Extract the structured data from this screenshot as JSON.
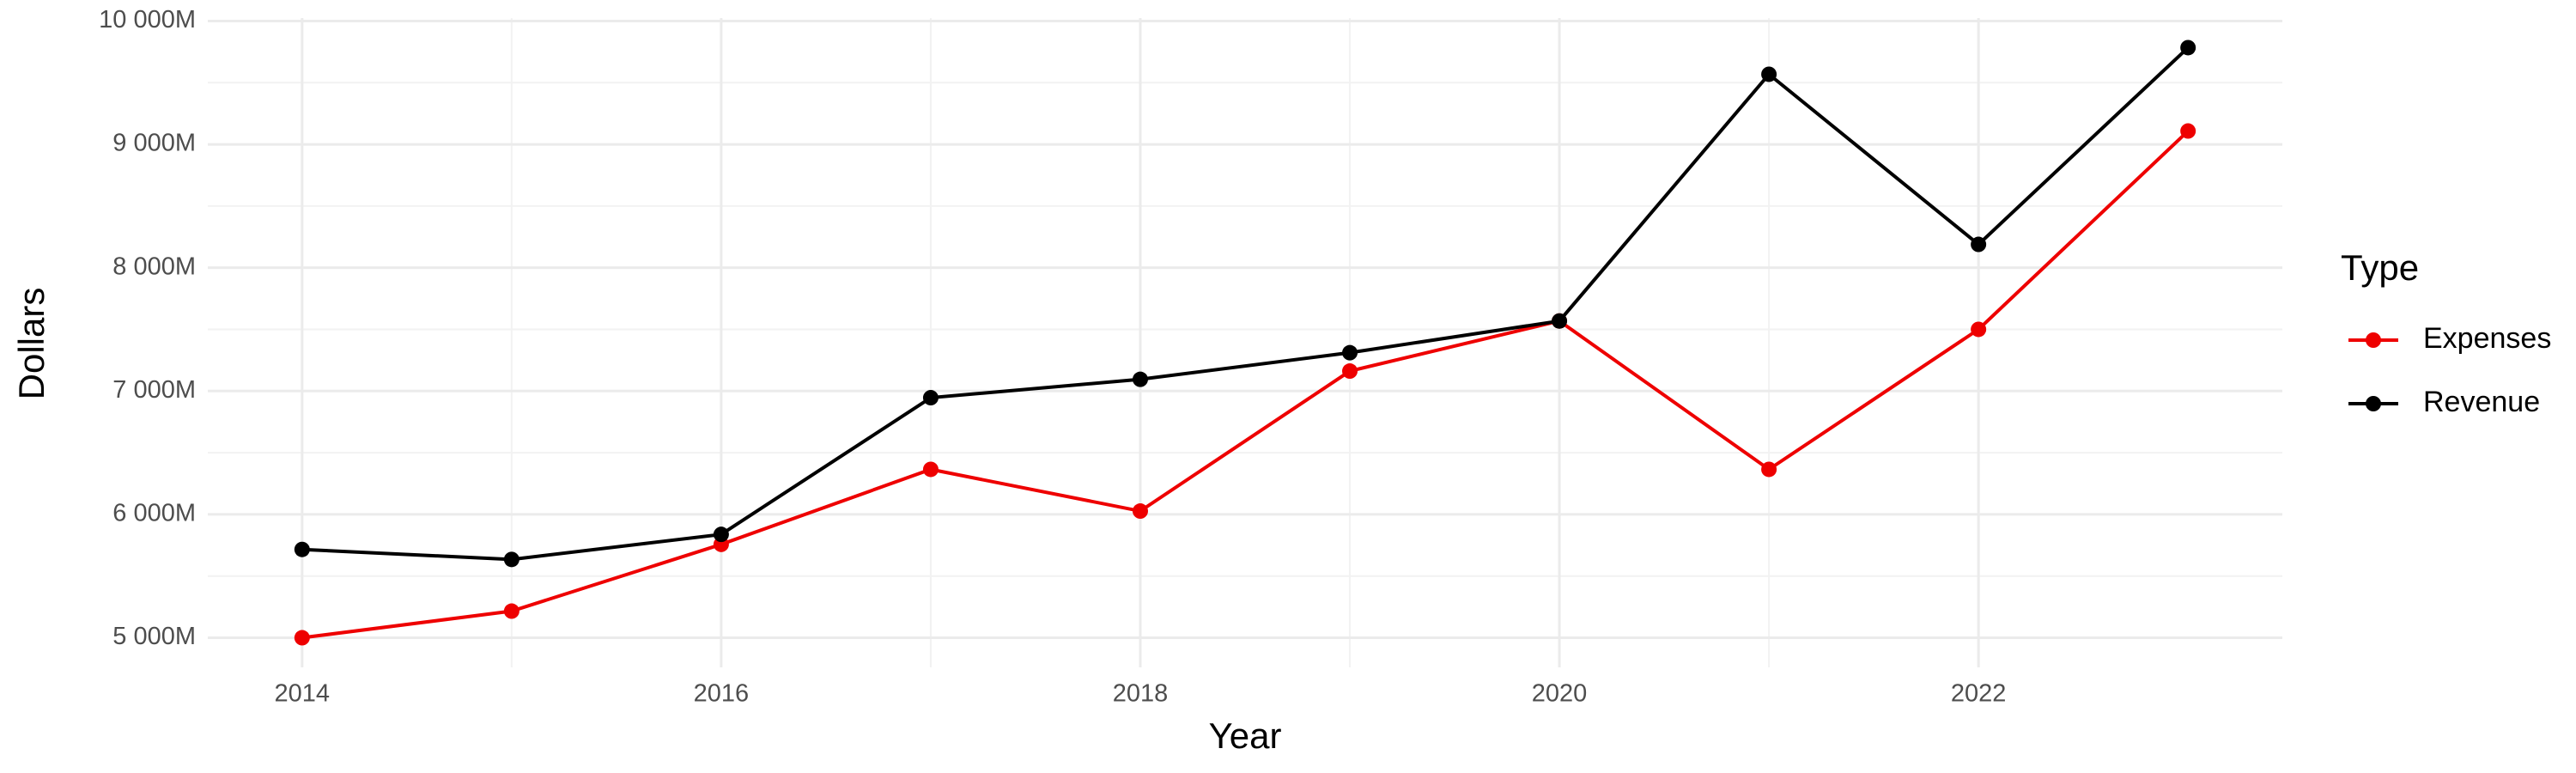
{
  "chart_data": {
    "type": "line",
    "x_label": "Year",
    "y_label": "Dollars",
    "x": [
      2014,
      2015,
      2016,
      2017,
      2018,
      2019,
      2020,
      2021,
      2022,
      2023
    ],
    "series": [
      {
        "name": "Expenses",
        "color": "#ee0000",
        "values": [
          5000,
          5216,
          5757,
          6365,
          6027,
          7162,
          7568,
          6365,
          7500,
          9108
        ]
      },
      {
        "name": "Revenue",
        "color": "#000000",
        "values": [
          5716,
          5635,
          5838,
          6946,
          7095,
          7311,
          7568,
          9568,
          8189,
          9784
        ]
      }
    ],
    "legend_title": "Type",
    "legend_position": "right",
    "xlim": [
      2013.55,
      2023.45
    ],
    "xticks": [
      2014,
      2016,
      2018,
      2020,
      2022
    ],
    "ylim": [
      4760,
      10024
    ],
    "yticks": [
      {
        "value": 5000,
        "label": "5 000M"
      },
      {
        "value": 6000,
        "label": "6 000M"
      },
      {
        "value": 7000,
        "label": "7 000M"
      },
      {
        "value": 8000,
        "label": "8 000M"
      },
      {
        "value": 9000,
        "label": "9 000M"
      },
      {
        "value": 10000,
        "label": "10 000M"
      }
    ],
    "grid": true
  }
}
